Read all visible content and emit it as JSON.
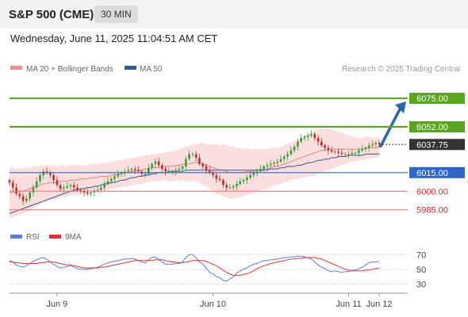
{
  "header": {
    "symbol": "S&P 500 (CME)",
    "interval": "30 MIN",
    "datetime": "Wednesday, June 11, 2025 11:04:51 AM CET"
  },
  "colors": {
    "up": "#3a9a3a",
    "down": "#b83030",
    "ma50": "#2f5a96",
    "ma20": "#e88080",
    "band_fill": "#fbdede",
    "resistance": "#5aa51e",
    "support_blue": "#2f66c8",
    "support_red": "#e07070",
    "rsi": "#5b7fd6",
    "rsi_ma": "#d63a3a",
    "arrow": "#2a65b0"
  },
  "chart_data": [
    {
      "type": "candlestick",
      "legend": [
        {
          "name": "MA 20 + Bollinger Bands",
          "color": "#f28d8d"
        },
        {
          "name": "MA 50",
          "color": "#2f5a96"
        }
      ],
      "attribution": "Research © 2025 Trading Central",
      "ylim": [
        5972,
        6093
      ],
      "x_labels": [
        "Jun 9",
        "Jun 10",
        "Jun 11",
        "Jun 12"
      ],
      "candle_count": 110,
      "last_price": 6037.75,
      "price_levels": [
        {
          "label": "6075.00",
          "value": 6075.0,
          "style": "resistance"
        },
        {
          "label": "6052.00",
          "value": 6052.0,
          "style": "resistance"
        },
        {
          "label": "6037.75",
          "value": 6037.75,
          "style": "last"
        },
        {
          "label": "6015.00",
          "value": 6015.0,
          "style": "support_blue"
        },
        {
          "label": "6000.00",
          "value": 6000.0,
          "style": "support_red"
        },
        {
          "label": "5985.00",
          "value": 5985.0,
          "style": "support_red"
        }
      ],
      "closes": [
        6007,
        6003,
        5998,
        5996,
        5992,
        5994,
        5999,
        6003,
        6008,
        6013,
        6016,
        6015,
        6013,
        6009,
        6005,
        6002,
        6003,
        6004,
        6005,
        6003,
        6001,
        6000,
        5999,
        5998,
        5999,
        6000,
        6001,
        6003,
        6006,
        6008,
        6010,
        6012,
        6014,
        6015,
        6016,
        6017,
        6018,
        6017,
        6016,
        6014,
        6014,
        6019,
        6022,
        6024,
        6021,
        6018,
        6016,
        6016,
        6016,
        6017,
        6018,
        6020,
        6026,
        6030,
        6030,
        6027,
        6022,
        6020,
        6017,
        6015,
        6013,
        6010,
        6009,
        6005,
        6003,
        6003,
        6004,
        6006,
        6008,
        6009,
        6011,
        6013,
        6015,
        6016,
        6018,
        6020,
        6021,
        6022,
        6023,
        6024,
        6026,
        6028,
        6030,
        6033,
        6036,
        6040,
        6043,
        6044,
        6045,
        6046,
        6043,
        6040,
        6037,
        6035,
        6033,
        6032,
        6032,
        6031,
        6030,
        6030,
        6030,
        6031,
        6031,
        6033,
        6034,
        6035,
        6037,
        6038,
        6039,
        6038
      ],
      "ma20": [
        5999,
        5999,
        5999,
        6000,
        6000,
        6001,
        6002,
        6003,
        6004,
        6005,
        6006,
        6006,
        6007,
        6007,
        6007,
        6008,
        6008,
        6008,
        6009,
        6009,
        6009,
        6010,
        6010,
        6010,
        6011,
        6011,
        6011,
        6012,
        6012,
        6012,
        6013,
        6013,
        6014,
        6014,
        6015,
        6015,
        6016,
        6016,
        6017,
        6017,
        6018,
        6018,
        6019,
        6019,
        6019,
        6020,
        6020,
        6020,
        6020,
        6021,
        6021,
        6022,
        6022,
        6022,
        6023,
        6023,
        6023,
        6022,
        6021,
        6020,
        6019,
        6018,
        6017,
        6017,
        6016,
        6015,
        6015,
        6015,
        6015,
        6015,
        6016,
        6016,
        6016,
        6017,
        6017,
        6018,
        6018,
        6019,
        6020,
        6020,
        6021,
        6022,
        6023,
        6024,
        6025,
        6026,
        6027,
        6028,
        6029,
        6030,
        6031,
        6032,
        6033,
        6033,
        6034,
        6034,
        6034,
        6034,
        6034,
        6034,
        6034,
        6034,
        6034,
        6034,
        6034,
        6035,
        6035,
        6035,
        6035,
        6036
      ],
      "ma50": [
        5982,
        5983,
        5984,
        5985,
        5986,
        5987,
        5988,
        5989,
        5990,
        5991,
        5992,
        5993,
        5994,
        5995,
        5996,
        5997,
        5998,
        5999,
        6000,
        6001,
        6001,
        6002,
        6002,
        6003,
        6003,
        6004,
        6004,
        6005,
        6006,
        6006,
        6007,
        6007,
        6008,
        6009,
        6009,
        6010,
        6011,
        6011,
        6012,
        6012,
        6013,
        6013,
        6014,
        6014,
        6015,
        6015,
        6015,
        6016,
        6016,
        6016,
        6016,
        6016,
        6017,
        6017,
        6017,
        6017,
        6017,
        6017,
        6017,
        6017,
        6017,
        6017,
        6017,
        6017,
        6017,
        6017,
        6017,
        6017,
        6017,
        6017,
        6017,
        6017,
        6017,
        6017,
        6017,
        6017,
        6017,
        6018,
        6018,
        6018,
        6019,
        6019,
        6020,
        6020,
        6020,
        6021,
        6021,
        6022,
        6023,
        6023,
        6024,
        6025,
        6025,
        6026,
        6026,
        6027,
        6027,
        6028,
        6028,
        6028,
        6029,
        6029,
        6029,
        6029,
        6029,
        6030,
        6030,
        6030,
        6030,
        6030
      ],
      "band_width": [
        21,
        20,
        19,
        19,
        18,
        18,
        17,
        17,
        16,
        16,
        15,
        15,
        14,
        14,
        13,
        13,
        13,
        12,
        12,
        12,
        12,
        11,
        11,
        11,
        11,
        11,
        11,
        11,
        11,
        11,
        11,
        11,
        11,
        11,
        11,
        11,
        11,
        11,
        11,
        11,
        11,
        11,
        11,
        11,
        11,
        11,
        11,
        12,
        12,
        12,
        13,
        13,
        14,
        14,
        15,
        15,
        16,
        17,
        17,
        18,
        19,
        20,
        20,
        21,
        21,
        21,
        21,
        20,
        20,
        19,
        19,
        18,
        18,
        17,
        17,
        16,
        16,
        16,
        15,
        15,
        15,
        15,
        15,
        15,
        15,
        16,
        16,
        17,
        17,
        18,
        18,
        18,
        18,
        17,
        17,
        16,
        15,
        14,
        13,
        12,
        11,
        10,
        10,
        9,
        9,
        9,
        9,
        8,
        8,
        8
      ]
    },
    {
      "type": "line",
      "legend": [
        {
          "name": "RSI",
          "color": "#5b7fd6"
        },
        {
          "name": "9MA",
          "color": "#d63a3a"
        }
      ],
      "ylim": [
        22,
        80
      ],
      "y_ticks": [
        70,
        50,
        30
      ],
      "rsi": [
        62,
        60,
        56,
        54,
        53,
        55,
        58,
        61,
        63,
        65,
        66,
        64,
        60,
        57,
        54,
        52,
        53,
        54,
        55,
        53,
        51,
        50,
        50,
        50,
        51,
        52,
        53,
        55,
        57,
        59,
        60,
        61,
        62,
        63,
        64,
        64,
        65,
        64,
        62,
        60,
        59,
        63,
        66,
        67,
        63,
        60,
        57,
        57,
        57,
        58,
        58,
        60,
        66,
        70,
        70,
        66,
        60,
        57,
        52,
        46,
        44,
        40,
        39,
        35,
        34,
        37,
        40,
        45,
        48,
        50,
        52,
        55,
        57,
        58,
        60,
        62,
        62,
        63,
        63,
        64,
        65,
        66,
        66,
        67,
        67,
        68,
        68,
        67,
        66,
        64,
        60,
        56,
        53,
        51,
        48,
        47,
        48,
        47,
        46,
        47,
        47,
        49,
        49,
        51,
        53,
        56,
        59,
        60,
        60,
        61
      ],
      "rsi_ma": [
        60,
        60,
        59,
        59,
        58,
        58,
        58,
        58,
        58,
        59,
        59,
        60,
        60,
        60,
        59,
        58,
        57,
        56,
        56,
        55,
        54,
        53,
        52,
        52,
        52,
        52,
        52,
        53,
        53,
        54,
        55,
        56,
        57,
        58,
        59,
        60,
        61,
        62,
        62,
        62,
        62,
        62,
        62,
        63,
        63,
        63,
        62,
        61,
        60,
        60,
        59,
        59,
        60,
        61,
        62,
        62,
        62,
        62,
        61,
        59,
        57,
        55,
        52,
        49,
        46,
        44,
        42,
        42,
        42,
        43,
        44,
        46,
        48,
        51,
        53,
        55,
        56,
        58,
        59,
        60,
        61,
        62,
        63,
        64,
        64,
        65,
        65,
        66,
        66,
        66,
        66,
        65,
        64,
        62,
        60,
        58,
        56,
        54,
        52,
        50,
        49,
        48,
        48,
        48,
        48,
        49,
        49,
        50,
        51,
        52
      ]
    }
  ]
}
